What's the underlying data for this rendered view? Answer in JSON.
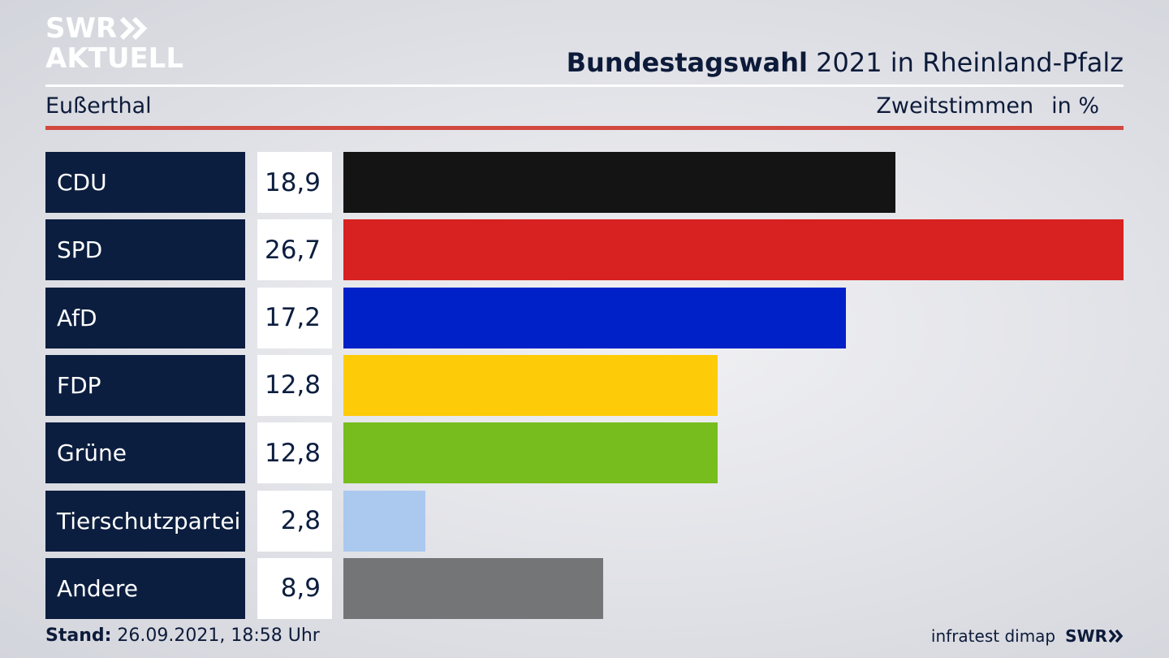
{
  "logo": {
    "line1": "SWR",
    "line2": "AKTUELL"
  },
  "header": {
    "title_bold": "Bundestagswahl",
    "title_rest": " 2021 in Rheinland-Pfalz",
    "location": "Eußerthal",
    "measure": "Zweitstimmen",
    "unit": "in %"
  },
  "chart_data": {
    "type": "bar",
    "orientation": "horizontal",
    "categories": [
      "CDU",
      "SPD",
      "AfD",
      "FDP",
      "Grüne",
      "Tierschutzpartei",
      "Andere"
    ],
    "values": [
      18.9,
      26.7,
      17.2,
      12.8,
      12.8,
      2.8,
      8.9
    ],
    "value_labels": [
      "18,9",
      "26,7",
      "17,2",
      "12,8",
      "12,8",
      "2,8",
      "8,9"
    ],
    "colors": [
      "#141414",
      "#d82121",
      "#0021c8",
      "#fdcb07",
      "#77bd1d",
      "#abc8ef",
      "#747577"
    ],
    "xlim": [
      0,
      26.7
    ],
    "grid": false,
    "legend": "none"
  },
  "footer": {
    "stand_label": "Stand:",
    "stand_value": " 26.09.2021, 18:58 Uhr",
    "source": "infratest dimap",
    "brand": "SWR"
  }
}
